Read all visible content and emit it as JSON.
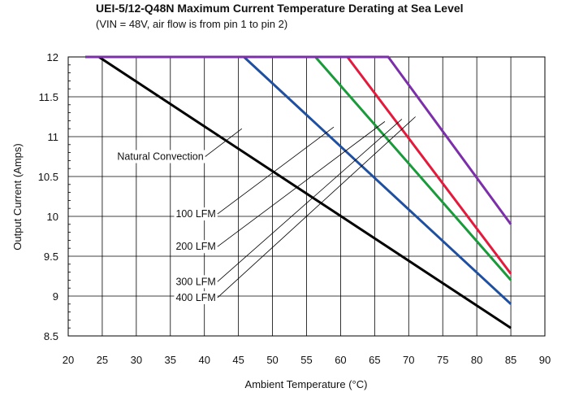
{
  "chart_data": {
    "type": "line",
    "title": "UEI-5/12-Q48N Maximum Current Temperature Derating at Sea Level",
    "subtitle": "(VIN = 48V, air flow is from pin 1 to pin 2)",
    "xlabel": "Ambient Temperature (°C)",
    "ylabel": "Output Current (Amps)",
    "xlim": [
      20,
      90
    ],
    "ylim": [
      8.5,
      12
    ],
    "x_ticks": [
      "20",
      "25",
      "30",
      "35",
      "40",
      "45",
      "50",
      "55",
      "60",
      "65",
      "70",
      "75",
      "80",
      "85",
      "90"
    ],
    "y_ticks": [
      "8.5",
      "9",
      "9.5",
      "10",
      "10.5",
      "11",
      "11.5",
      "12"
    ],
    "grid": true,
    "series": [
      {
        "name": "Natural Convection",
        "color": "#000000",
        "points": [
          [
            22.5,
            12
          ],
          [
            24.5,
            12
          ],
          [
            85,
            8.6
          ]
        ]
      },
      {
        "name": "100 LFM",
        "color": "#1f4f9f",
        "points": [
          [
            22.5,
            12
          ],
          [
            45.8,
            12
          ],
          [
            85,
            8.9
          ]
        ]
      },
      {
        "name": "200 LFM",
        "color": "#1a9a3a",
        "points": [
          [
            22.5,
            12
          ],
          [
            56.3,
            12
          ],
          [
            85,
            9.2
          ]
        ]
      },
      {
        "name": "300 LFM",
        "color": "#e21b3c",
        "points": [
          [
            22.5,
            12
          ],
          [
            61,
            12
          ],
          [
            85,
            9.28
          ]
        ]
      },
      {
        "name": "400 LFM",
        "color": "#7b2fa8",
        "points": [
          [
            22.5,
            12
          ],
          [
            67,
            12
          ],
          [
            85,
            9.9
          ]
        ]
      }
    ],
    "annotations": [
      {
        "text": "Natural Convection",
        "label_at": [
          27.2,
          10.75
        ],
        "leader_to": [
          45.5,
          11.1
        ]
      },
      {
        "text": "100 LFM",
        "label_at": [
          35.8,
          10.03
        ],
        "leader_to": [
          59,
          11.12
        ]
      },
      {
        "text": "200 LFM",
        "label_at": [
          35.8,
          9.62
        ],
        "leader_to": [
          66.5,
          11.19
        ]
      },
      {
        "text": "300 LFM",
        "label_at": [
          35.8,
          9.18
        ],
        "leader_to": [
          69,
          11.22
        ]
      },
      {
        "text": "400 LFM",
        "label_at": [
          35.8,
          8.98
        ],
        "leader_to": [
          71,
          11.25
        ]
      }
    ]
  }
}
